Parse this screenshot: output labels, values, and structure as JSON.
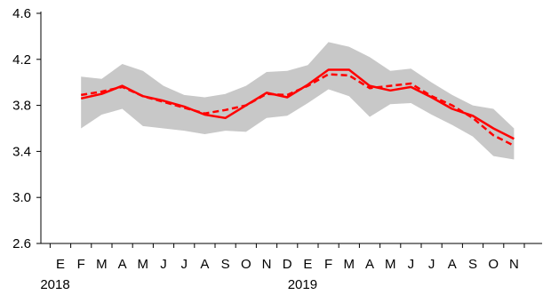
{
  "chart_data": {
    "type": "line",
    "categories": [
      "E",
      "F",
      "M",
      "A",
      "M",
      "J",
      "J",
      "A",
      "S",
      "O",
      "N",
      "D",
      "E",
      "F",
      "M",
      "A",
      "M",
      "J",
      "J",
      "A",
      "S",
      "O",
      "N"
    ],
    "year_labels": [
      {
        "label": "2018",
        "category_index": 0
      },
      {
        "label": "2019",
        "category_index": 12
      }
    ],
    "ylim": [
      2.6,
      4.6
    ],
    "yticks": [
      "2.6",
      "3.0",
      "3.4",
      "3.8",
      "4.2",
      "4.6"
    ],
    "ytick_values": [
      2.6,
      3.0,
      3.4,
      3.8,
      4.2,
      4.6
    ],
    "series": [
      {
        "style": "solid-red",
        "values": [
          null,
          3.86,
          3.9,
          3.97,
          3.88,
          3.84,
          3.79,
          3.72,
          3.69,
          3.8,
          3.91,
          3.87,
          3.98,
          4.11,
          4.11,
          3.97,
          3.93,
          3.96,
          3.87,
          3.77,
          3.71,
          3.6,
          3.51
        ]
      },
      {
        "style": "dashed-red",
        "values": [
          null,
          3.89,
          3.92,
          3.96,
          3.88,
          3.83,
          3.78,
          3.73,
          3.76,
          3.8,
          3.9,
          3.89,
          3.97,
          4.07,
          4.06,
          3.95,
          3.97,
          3.99,
          3.88,
          3.8,
          3.69,
          3.54,
          3.45
        ]
      }
    ],
    "band": {
      "upper": [
        null,
        4.05,
        4.03,
        4.16,
        4.1,
        3.97,
        3.89,
        3.87,
        3.9,
        3.97,
        4.09,
        4.1,
        4.15,
        4.35,
        4.31,
        4.22,
        4.1,
        4.12,
        4.0,
        3.89,
        3.8,
        3.77,
        3.6
      ],
      "lower": [
        null,
        3.6,
        3.72,
        3.77,
        3.62,
        3.6,
        3.58,
        3.55,
        3.58,
        3.57,
        3.69,
        3.71,
        3.82,
        3.94,
        3.88,
        3.7,
        3.81,
        3.82,
        3.72,
        3.63,
        3.53,
        3.36,
        3.33
      ]
    },
    "colors": {
      "line": "#ff0000",
      "band": "#c8c8c8",
      "axis": "#000000"
    },
    "grid": false,
    "legend": "none"
  }
}
